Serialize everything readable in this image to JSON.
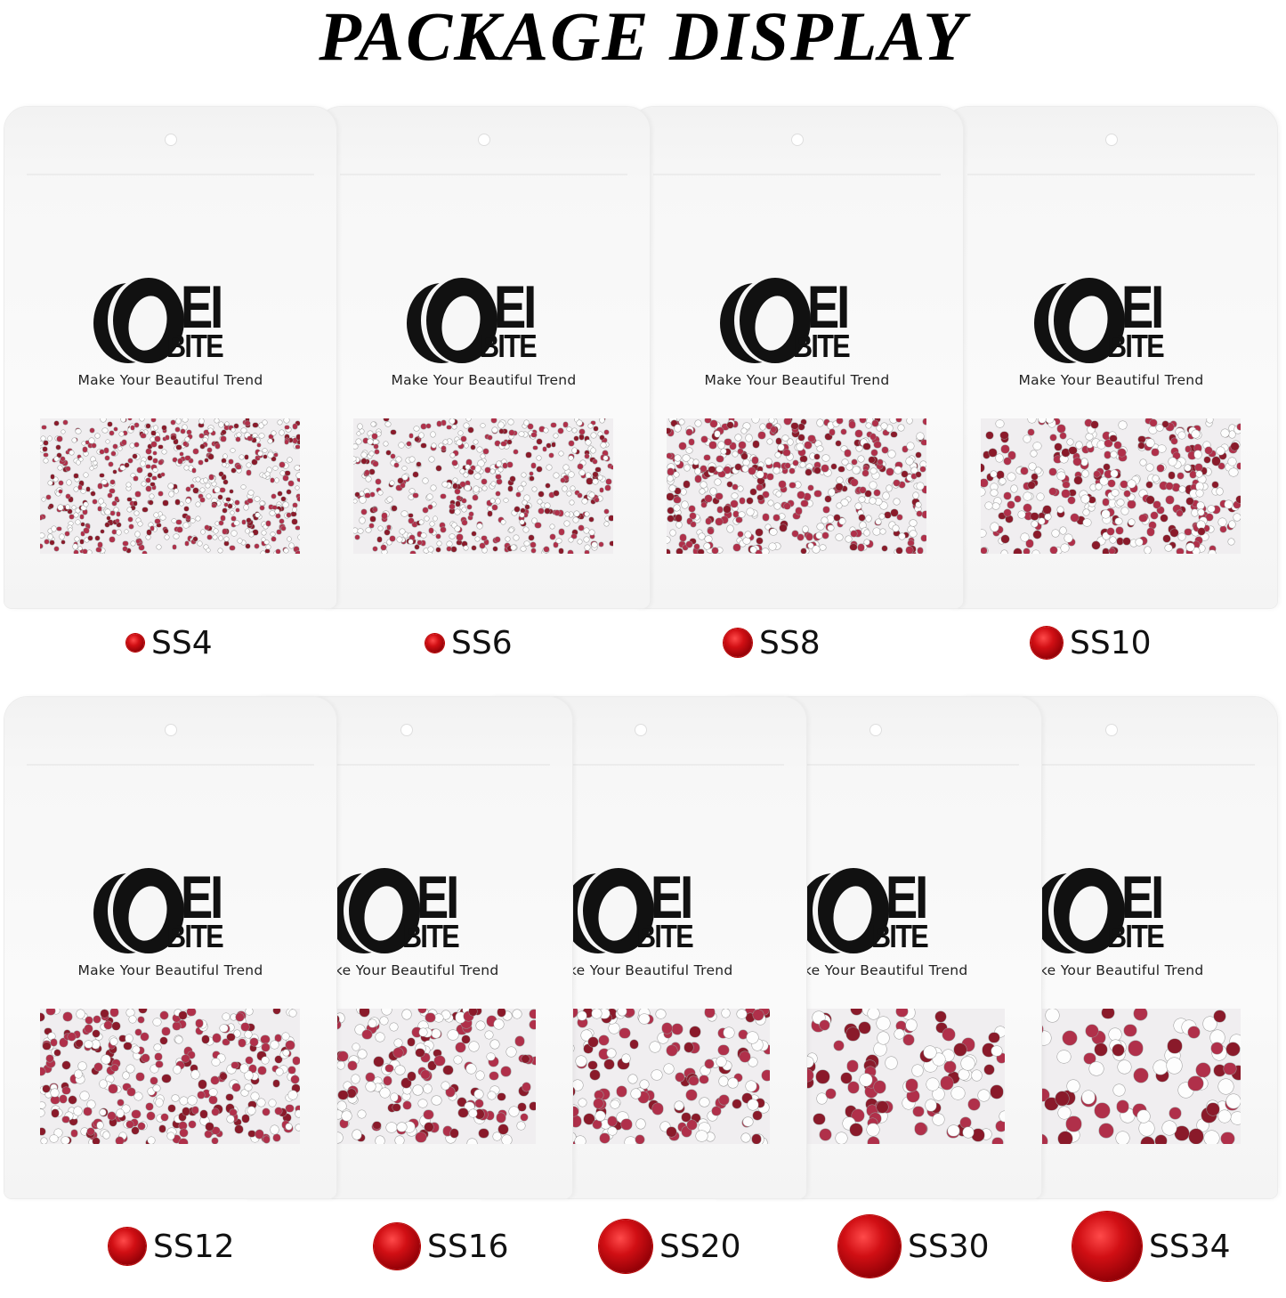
{
  "title": "PACKAGE DISPLAY",
  "brand": {
    "logo_top": "EI",
    "logo_bottom": "BITE",
    "logo_text": "OEI BITE",
    "tagline": "Make Your Beautiful Trend"
  },
  "colors": {
    "gem_red": "#c8101a",
    "stone_pink": "#b0304a"
  },
  "packages": [
    {
      "size": "SS4",
      "gem_scale": 1
    },
    {
      "size": "SS6",
      "gem_scale": 1.05
    },
    {
      "size": "SS8",
      "gem_scale": 1.6
    },
    {
      "size": "SS10",
      "gem_scale": 1.8
    },
    {
      "size": "SS12",
      "gem_scale": 2.1
    },
    {
      "size": "SS16",
      "gem_scale": 2.6
    },
    {
      "size": "SS20",
      "gem_scale": 3.0
    },
    {
      "size": "SS30",
      "gem_scale": 3.5
    },
    {
      "size": "SS34",
      "gem_scale": 3.9
    }
  ]
}
